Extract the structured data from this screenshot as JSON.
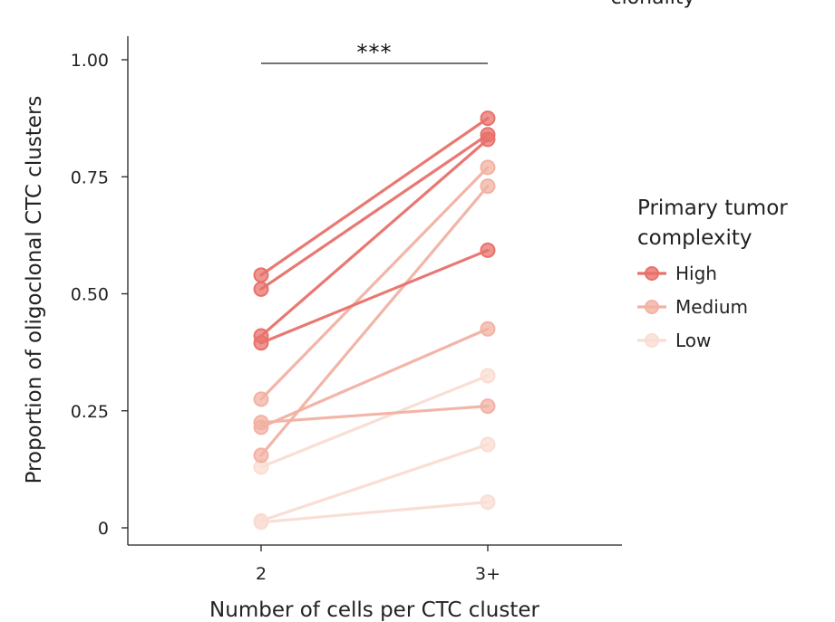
{
  "top_cut_text": "clonality",
  "chart_data": {
    "type": "line",
    "title": "",
    "xlabel": "Number of cells per CTC cluster",
    "ylabel": "Proportion of oligoclonal CTC clusters",
    "categories": [
      "2",
      "3+"
    ],
    "ylim": [
      0,
      1.0
    ],
    "yticks": [
      0,
      0.25,
      0.5,
      0.75,
      1.0
    ],
    "ytick_labels": [
      "0",
      "0.25",
      "0.50",
      "0.75",
      "1.00"
    ],
    "significance": {
      "label": "***",
      "between": [
        "2",
        "3+"
      ]
    },
    "legend": {
      "title_lines": [
        "Primary tumor",
        "complexity"
      ],
      "position": "right",
      "entries": [
        {
          "key": "high",
          "label": "High",
          "color": "#E8716B"
        },
        {
          "key": "medium",
          "label": "Medium",
          "color": "#F2B2A3"
        },
        {
          "key": "low",
          "label": "Low",
          "color": "#F9DDD3"
        }
      ]
    },
    "series": [
      {
        "group": "high",
        "values": [
          0.54,
          0.875
        ]
      },
      {
        "group": "high",
        "values": [
          0.51,
          0.84
        ]
      },
      {
        "group": "high",
        "values": [
          0.41,
          0.83
        ]
      },
      {
        "group": "high",
        "values": [
          0.395,
          0.593
        ]
      },
      {
        "group": "medium",
        "values": [
          0.275,
          0.77
        ]
      },
      {
        "group": "medium",
        "values": [
          0.225,
          0.26
        ]
      },
      {
        "group": "medium",
        "values": [
          0.155,
          0.73
        ]
      },
      {
        "group": "medium",
        "values": [
          0.215,
          0.425
        ]
      },
      {
        "group": "low",
        "values": [
          0.13,
          0.325
        ]
      },
      {
        "group": "low",
        "values": [
          0.015,
          0.178
        ]
      },
      {
        "group": "low",
        "values": [
          0.012,
          0.055
        ]
      }
    ]
  }
}
